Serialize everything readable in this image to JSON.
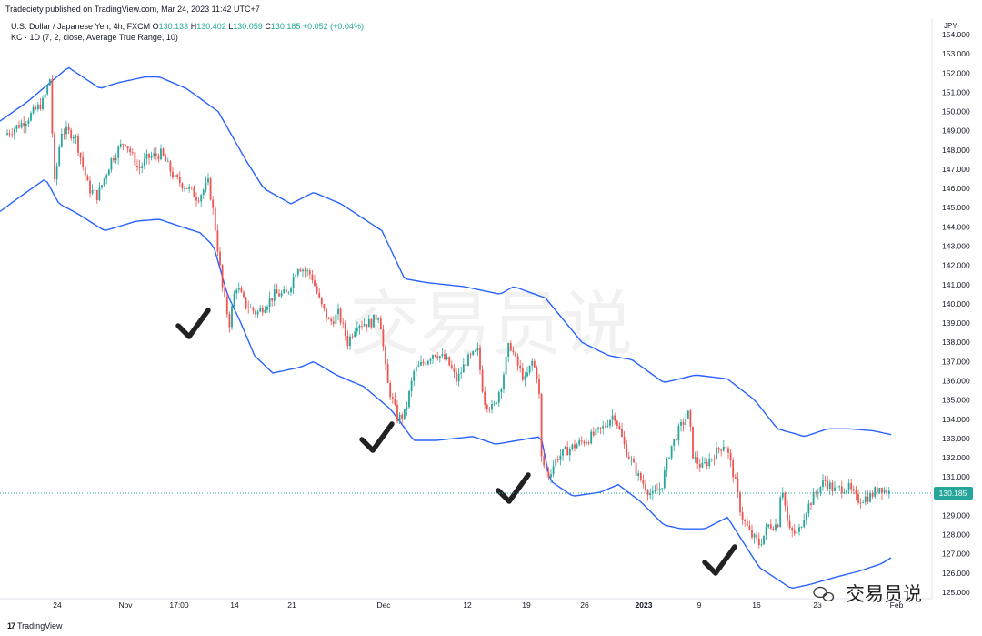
{
  "header": {
    "publisher": "Tradeciety published on TradingView.com, Mar 24, 2023 11:42 UTC+7",
    "symbol": "U.S. Dollar / Japanese Yen, 4h, FXCM",
    "open_label": "O",
    "open": "130.133",
    "high_label": "H",
    "high": "130.402",
    "low_label": "L",
    "low": "130.059",
    "close_label": "C",
    "close": "130.185",
    "change": "+0.052 (+0.04%)",
    "indicator": "KC · 1D (7, 2, close, Average True Range, 10)"
  },
  "brand": {
    "logo": "17",
    "name": "TradingView"
  },
  "watermark_center": "交易员说",
  "watermark_corner": "交易员说",
  "chart_data": {
    "type": "candlestick",
    "currency": "JPY",
    "y_ticks": [
      "125.000",
      "126.000",
      "127.000",
      "128.000",
      "129.000",
      "130.000",
      "131.000",
      "132.000",
      "133.000",
      "134.000",
      "135.000",
      "136.000",
      "137.000",
      "138.000",
      "139.000",
      "140.000",
      "141.000",
      "142.000",
      "143.000",
      "144.000",
      "145.000",
      "146.000",
      "147.000",
      "148.000",
      "149.000",
      "150.000",
      "151.000",
      "152.000",
      "153.000",
      "154.000"
    ],
    "ylim": [
      125,
      154
    ],
    "x_ticks": [
      "24",
      "Nov",
      "17:00",
      "14",
      "21",
      "Dec",
      "12",
      "19",
      "26",
      "2023",
      "9",
      "16",
      "23",
      "Feb"
    ],
    "last_price": "130.185",
    "colors": {
      "up": "#26a69a",
      "down": "#ef5350",
      "channel": "#2962ff",
      "price_line": "#26a69a"
    },
    "upper_band_anchors": [
      [
        0,
        149.5
      ],
      [
        30,
        150.5
      ],
      [
        55,
        151.5
      ],
      [
        75,
        152.3
      ],
      [
        110,
        151.2
      ],
      [
        130,
        151.5
      ],
      [
        160,
        151.8
      ],
      [
        175,
        151.8
      ],
      [
        205,
        151.2
      ],
      [
        240,
        150
      ],
      [
        270,
        147.5
      ],
      [
        290,
        146
      ],
      [
        320,
        145.2
      ],
      [
        345,
        145.8
      ],
      [
        375,
        145.2
      ],
      [
        420,
        143.8
      ],
      [
        445,
        141.3
      ],
      [
        470,
        141.1
      ],
      [
        510,
        140.9
      ],
      [
        550,
        140.5
      ],
      [
        565,
        140.9
      ],
      [
        600,
        140.3
      ],
      [
        640,
        138
      ],
      [
        670,
        137.3
      ],
      [
        695,
        137.1
      ],
      [
        730,
        135.9
      ],
      [
        765,
        136.3
      ],
      [
        800,
        136.1
      ],
      [
        830,
        135
      ],
      [
        855,
        133.5
      ],
      [
        885,
        133.1
      ],
      [
        910,
        133.5
      ],
      [
        935,
        133.5
      ],
      [
        960,
        133.4
      ],
      [
        980,
        133.2
      ]
    ],
    "lower_band_anchors": [
      [
        0,
        144.8
      ],
      [
        20,
        145.5
      ],
      [
        50,
        146.5
      ],
      [
        65,
        145.2
      ],
      [
        85,
        144.7
      ],
      [
        115,
        143.8
      ],
      [
        150,
        144.3
      ],
      [
        175,
        144.4
      ],
      [
        200,
        144
      ],
      [
        220,
        143.7
      ],
      [
        235,
        143
      ],
      [
        250,
        140.5
      ],
      [
        265,
        139
      ],
      [
        280,
        137.3
      ],
      [
        300,
        136.4
      ],
      [
        330,
        136.7
      ],
      [
        345,
        137
      ],
      [
        370,
        136.3
      ],
      [
        400,
        135.7
      ],
      [
        430,
        134.5
      ],
      [
        455,
        132.9
      ],
      [
        480,
        132.9
      ],
      [
        520,
        133.1
      ],
      [
        545,
        132.7
      ],
      [
        570,
        132.9
      ],
      [
        595,
        133.1
      ],
      [
        605,
        130.8
      ],
      [
        630,
        130
      ],
      [
        660,
        130.2
      ],
      [
        680,
        130.6
      ],
      [
        705,
        129.7
      ],
      [
        730,
        128.5
      ],
      [
        750,
        128.3
      ],
      [
        775,
        128.3
      ],
      [
        800,
        128.9
      ],
      [
        835,
        126.3
      ],
      [
        870,
        125.2
      ],
      [
        890,
        125.4
      ],
      [
        920,
        125.8
      ],
      [
        945,
        126.1
      ],
      [
        970,
        126.5
      ],
      [
        980,
        126.8
      ]
    ],
    "price_anchors": [
      [
        8,
        148.8
      ],
      [
        30,
        149.5
      ],
      [
        50,
        150.5
      ],
      [
        58,
        151.8
      ],
      [
        62,
        146
      ],
      [
        70,
        149
      ],
      [
        85,
        148.8
      ],
      [
        100,
        146
      ],
      [
        110,
        145.6
      ],
      [
        125,
        147.5
      ],
      [
        140,
        148.5
      ],
      [
        155,
        147
      ],
      [
        165,
        147.6
      ],
      [
        180,
        147.8
      ],
      [
        195,
        146.5
      ],
      [
        210,
        146
      ],
      [
        220,
        145.5
      ],
      [
        232,
        146.3
      ],
      [
        238,
        144.5
      ],
      [
        243,
        142.5
      ],
      [
        248,
        140.5
      ],
      [
        255,
        139
      ],
      [
        262,
        141
      ],
      [
        272,
        140
      ],
      [
        285,
        139.5
      ],
      [
        295,
        140
      ],
      [
        305,
        140.5
      ],
      [
        318,
        140.5
      ],
      [
        330,
        142
      ],
      [
        345,
        141.5
      ],
      [
        355,
        140
      ],
      [
        365,
        139
      ],
      [
        375,
        139.5
      ],
      [
        385,
        138
      ],
      [
        395,
        139
      ],
      [
        410,
        139
      ],
      [
        420,
        139.5
      ],
      [
        428,
        136
      ],
      [
        440,
        134
      ],
      [
        448,
        134.3
      ],
      [
        458,
        136.5
      ],
      [
        470,
        137
      ],
      [
        480,
        137.5
      ],
      [
        495,
        137
      ],
      [
        505,
        136
      ],
      [
        515,
        137
      ],
      [
        528,
        137.5
      ],
      [
        535,
        135
      ],
      [
        545,
        134.5
      ],
      [
        555,
        136
      ],
      [
        563,
        138
      ],
      [
        570,
        137
      ],
      [
        580,
        136
      ],
      [
        588,
        137
      ],
      [
        595,
        136
      ],
      [
        598,
        132
      ],
      [
        605,
        131
      ],
      [
        615,
        132
      ],
      [
        630,
        132.5
      ],
      [
        650,
        133
      ],
      [
        665,
        133.5
      ],
      [
        678,
        134.3
      ],
      [
        690,
        132.5
      ],
      [
        705,
        131
      ],
      [
        720,
        130
      ],
      [
        730,
        130.5
      ],
      [
        740,
        132.5
      ],
      [
        750,
        133.5
      ],
      [
        760,
        134.3
      ],
      [
        765,
        132
      ],
      [
        775,
        131.5
      ],
      [
        785,
        132
      ],
      [
        800,
        132.8
      ],
      [
        810,
        131
      ],
      [
        818,
        129
      ],
      [
        828,
        128
      ],
      [
        838,
        127.5
      ],
      [
        848,
        128.5
      ],
      [
        858,
        128.5
      ],
      [
        862,
        130.8
      ],
      [
        870,
        128.2
      ],
      [
        880,
        128
      ],
      [
        888,
        129.2
      ],
      [
        900,
        130.2
      ],
      [
        910,
        130.8
      ],
      [
        920,
        130.3
      ],
      [
        935,
        130.5
      ],
      [
        945,
        129.8
      ],
      [
        960,
        130
      ],
      [
        970,
        130.5
      ],
      [
        980,
        130.2
      ]
    ]
  }
}
